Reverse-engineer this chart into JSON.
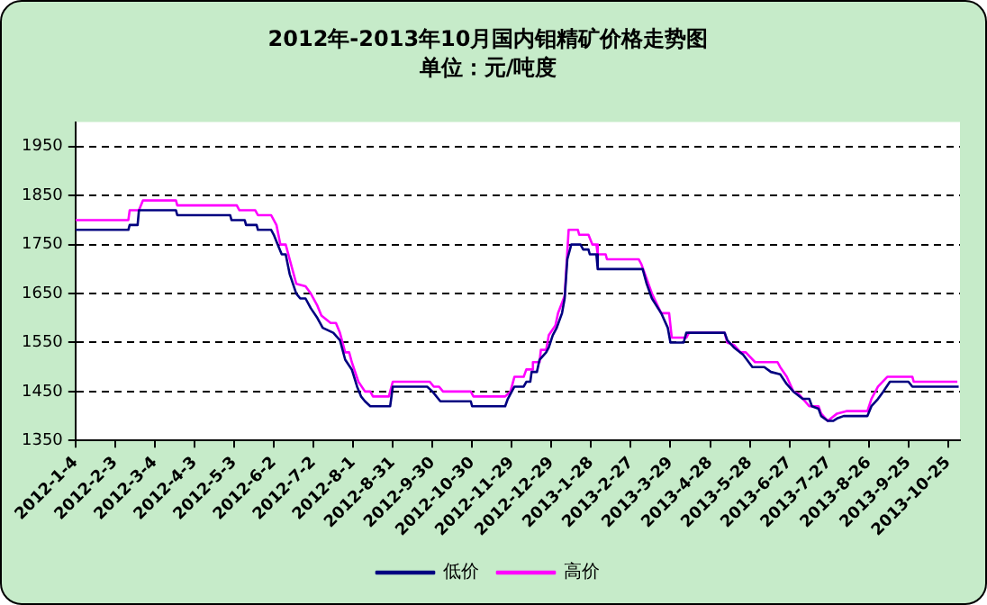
{
  "chart_data": {
    "type": "line",
    "title": "2012年-2013年10月国内钼精矿价格走势图",
    "subtitle": "单位：元/吨度",
    "xlim": [
      "2012-01-04",
      "2013-11-03"
    ],
    "xticks": [
      {
        "value": "2012-01-04",
        "label": "2012-1-4"
      },
      {
        "value": "2012-02-03",
        "label": "2012-2-3"
      },
      {
        "value": "2012-03-04",
        "label": "2012-3-4"
      },
      {
        "value": "2012-04-03",
        "label": "2012-4-3"
      },
      {
        "value": "2012-05-03",
        "label": "2012-5-3"
      },
      {
        "value": "2012-06-02",
        "label": "2012-6-2"
      },
      {
        "value": "2012-07-02",
        "label": "2012-7-2"
      },
      {
        "value": "2012-08-01",
        "label": "2012-8-1"
      },
      {
        "value": "2012-08-31",
        "label": "2012-8-31"
      },
      {
        "value": "2012-09-30",
        "label": "2012-9-30"
      },
      {
        "value": "2012-10-30",
        "label": "2012-10-30"
      },
      {
        "value": "2012-11-29",
        "label": "2012-11-29"
      },
      {
        "value": "2012-12-29",
        "label": "2012-12-29"
      },
      {
        "value": "2013-01-28",
        "label": "2013-1-28"
      },
      {
        "value": "2013-02-27",
        "label": "2013-2-27"
      },
      {
        "value": "2013-03-29",
        "label": "2013-3-29"
      },
      {
        "value": "2013-04-28",
        "label": "2013-4-28"
      },
      {
        "value": "2013-05-28",
        "label": "2013-5-28"
      },
      {
        "value": "2013-06-27",
        "label": "2013-6-27"
      },
      {
        "value": "2013-07-27",
        "label": "2013-7-27"
      },
      {
        "value": "2013-08-26",
        "label": "2013-8-26"
      },
      {
        "value": "2013-09-25",
        "label": "2013-9-25"
      },
      {
        "value": "2013-10-25",
        "label": "2013-10-25"
      }
    ],
    "ylim": [
      1350,
      2000
    ],
    "yticks": [
      1350,
      1450,
      1550,
      1650,
      1750,
      1850,
      1950
    ],
    "grid": "y",
    "legend": "bottom",
    "marker": "none",
    "line_style": "solid",
    "series": [
      {
        "name": "低价",
        "color": "#000080",
        "x": [
          "2012-01-04",
          "2012-02-13",
          "2012-02-14",
          "2012-02-20",
          "2012-02-21",
          "2012-03-20",
          "2012-03-21",
          "2012-04-30",
          "2012-05-01",
          "2012-05-11",
          "2012-05-12",
          "2012-05-20",
          "2012-05-21",
          "2012-05-31",
          "2012-06-02",
          "2012-06-05",
          "2012-06-08",
          "2012-06-11",
          "2012-06-14",
          "2012-06-19",
          "2012-06-22",
          "2012-06-26",
          "2012-06-30",
          "2012-07-05",
          "2012-07-09",
          "2012-07-17",
          "2012-07-22",
          "2012-07-26",
          "2012-07-31",
          "2012-08-04",
          "2012-08-07",
          "2012-08-10",
          "2012-08-14",
          "2012-08-29",
          "2012-08-31",
          "2012-09-26",
          "2012-09-30",
          "2012-10-06",
          "2012-10-29",
          "2012-10-30",
          "2012-11-17",
          "2012-11-24",
          "2012-11-26",
          "2012-12-01",
          "2012-12-08",
          "2012-12-10",
          "2012-12-13",
          "2012-12-14",
          "2012-12-18",
          "2012-12-20",
          "2012-12-25",
          "2012-12-27",
          "2012-12-30",
          "2013-01-02",
          "2013-01-06",
          "2013-01-08",
          "2013-01-10",
          "2013-01-13",
          "2013-01-20",
          "2013-01-22",
          "2013-01-26",
          "2013-01-27",
          "2013-02-01",
          "2013-02-02",
          "2013-03-08",
          "2013-03-11",
          "2013-03-15",
          "2013-03-22",
          "2013-03-27",
          "2013-03-29",
          "2013-04-08",
          "2013-04-10",
          "2013-05-09",
          "2013-05-11",
          "2013-05-16",
          "2013-05-23",
          "2013-05-30",
          "2013-06-08",
          "2013-06-13",
          "2013-06-20",
          "2013-06-25",
          "2013-06-30",
          "2013-07-07",
          "2013-07-12",
          "2013-07-14",
          "2013-07-19",
          "2013-07-21",
          "2013-07-26",
          "2013-07-30",
          "2013-08-02",
          "2013-08-07",
          "2013-08-25",
          "2013-08-28",
          "2013-09-02",
          "2013-09-06",
          "2013-09-11",
          "2013-09-25",
          "2013-09-28",
          "2013-11-02"
        ],
        "values": [
          1780,
          1780,
          1790,
          1790,
          1820,
          1820,
          1810,
          1810,
          1800,
          1800,
          1790,
          1790,
          1780,
          1780,
          1770,
          1750,
          1730,
          1730,
          1690,
          1650,
          1640,
          1640,
          1620,
          1600,
          1580,
          1570,
          1555,
          1515,
          1495,
          1460,
          1440,
          1430,
          1420,
          1420,
          1460,
          1460,
          1450,
          1430,
          1430,
          1420,
          1420,
          1420,
          1435,
          1460,
          1460,
          1470,
          1470,
          1490,
          1490,
          1515,
          1530,
          1540,
          1565,
          1580,
          1610,
          1640,
          1720,
          1750,
          1750,
          1740,
          1740,
          1730,
          1730,
          1700,
          1700,
          1670,
          1640,
          1610,
          1580,
          1550,
          1550,
          1570,
          1570,
          1555,
          1540,
          1525,
          1500,
          1500,
          1490,
          1485,
          1465,
          1450,
          1435,
          1435,
          1420,
          1415,
          1400,
          1390,
          1390,
          1395,
          1400,
          1400,
          1420,
          1435,
          1450,
          1470,
          1470,
          1460,
          1460
        ]
      },
      {
        "name": "高价",
        "color": "#ff00ff",
        "x": [
          "2012-01-04",
          "2012-02-13",
          "2012-02-14",
          "2012-02-21",
          "2012-02-24",
          "2012-03-20",
          "2012-03-21",
          "2012-05-05",
          "2012-05-07",
          "2012-05-19",
          "2012-05-21",
          "2012-05-31",
          "2012-06-04",
          "2012-06-07",
          "2012-06-11",
          "2012-06-14",
          "2012-06-19",
          "2012-06-26",
          "2012-06-30",
          "2012-07-05",
          "2012-07-08",
          "2012-07-15",
          "2012-07-19",
          "2012-07-22",
          "2012-07-26",
          "2012-07-29",
          "2012-07-31",
          "2012-08-05",
          "2012-08-10",
          "2012-08-14",
          "2012-08-16",
          "2012-08-28",
          "2012-08-31",
          "2012-09-28",
          "2012-10-01",
          "2012-10-05",
          "2012-10-08",
          "2012-10-29",
          "2012-10-31",
          "2012-11-19",
          "2012-11-24",
          "2012-11-28",
          "2012-12-01",
          "2012-12-08",
          "2012-12-10",
          "2012-12-14",
          "2012-12-15",
          "2012-12-20",
          "2012-12-21",
          "2012-12-25",
          "2012-12-27",
          "2013-01-01",
          "2013-01-03",
          "2013-01-08",
          "2013-01-11",
          "2013-01-18",
          "2013-01-19",
          "2013-01-26",
          "2013-01-29",
          "2013-02-01",
          "2013-02-02",
          "2013-02-08",
          "2013-02-09",
          "2013-03-05",
          "2013-03-07",
          "2013-03-11",
          "2013-03-15",
          "2013-03-22",
          "2013-03-28",
          "2013-03-30",
          "2013-04-10",
          "2013-04-12",
          "2013-05-09",
          "2013-05-11",
          "2013-05-16",
          "2013-05-21",
          "2013-05-25",
          "2013-06-01",
          "2013-06-18",
          "2013-06-20",
          "2013-06-25",
          "2013-06-30",
          "2013-07-04",
          "2013-07-12",
          "2013-07-19",
          "2013-07-21",
          "2013-07-26",
          "2013-08-02",
          "2013-08-09",
          "2013-08-25",
          "2013-08-28",
          "2013-09-02",
          "2013-09-09",
          "2013-09-28",
          "2013-09-29",
          "2013-11-01"
        ],
        "values": [
          1800,
          1800,
          1820,
          1820,
          1840,
          1840,
          1830,
          1830,
          1820,
          1820,
          1810,
          1810,
          1790,
          1750,
          1750,
          1720,
          1670,
          1665,
          1650,
          1625,
          1605,
          1590,
          1590,
          1570,
          1530,
          1530,
          1510,
          1470,
          1450,
          1450,
          1440,
          1440,
          1470,
          1470,
          1460,
          1460,
          1450,
          1450,
          1440,
          1440,
          1440,
          1450,
          1480,
          1480,
          1495,
          1495,
          1510,
          1510,
          1535,
          1535,
          1565,
          1585,
          1610,
          1645,
          1780,
          1780,
          1770,
          1770,
          1750,
          1750,
          1730,
          1730,
          1720,
          1720,
          1710,
          1680,
          1650,
          1610,
          1610,
          1560,
          1560,
          1570,
          1570,
          1550,
          1545,
          1530,
          1530,
          1510,
          1510,
          1500,
          1480,
          1450,
          1445,
          1420,
          1420,
          1405,
          1390,
          1405,
          1410,
          1410,
          1435,
          1460,
          1480,
          1480,
          1470,
          1470
        ]
      }
    ]
  }
}
